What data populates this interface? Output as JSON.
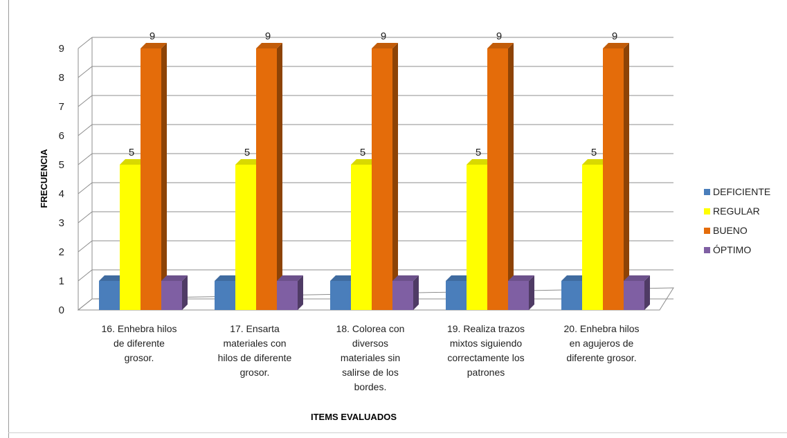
{
  "chart_data": {
    "type": "bar",
    "style": "3d-clustered",
    "title": "",
    "xlabel": "ITEMS EVALUADOS",
    "ylabel": "FRECUENCIA",
    "ylim": [
      0,
      9
    ],
    "yticks": [
      0,
      1,
      2,
      3,
      4,
      5,
      6,
      7,
      8,
      9
    ],
    "grid": true,
    "legend_position": "right",
    "categories": [
      [
        "16. Enhebra hilos",
        "de diferente",
        "grosor."
      ],
      [
        "17. Ensarta",
        "materiales con",
        "hilos de diferente",
        "grosor."
      ],
      [
        "18. Colorea con",
        "diversos",
        "materiales sin",
        "salirse de los",
        "bordes."
      ],
      [
        "19. Realiza trazos",
        "mixtos siguiendo",
        "correctamente los",
        "patrones"
      ],
      [
        "20. Enhebra hilos",
        "en agujeros de",
        "diferente grosor."
      ]
    ],
    "series": [
      {
        "name": "DEFICIENTE",
        "color": "#4a7ebb",
        "values": [
          1,
          1,
          1,
          1,
          1
        ],
        "show_labels": false
      },
      {
        "name": "REGULAR",
        "color": "#ffff00",
        "values": [
          5,
          5,
          5,
          5,
          5
        ],
        "show_labels": true
      },
      {
        "name": "BUENO",
        "color": "#e46c0a",
        "values": [
          9,
          9,
          9,
          9,
          9
        ],
        "show_labels": true
      },
      {
        "name": "ÓPTIMO",
        "color": "#7f5fa3",
        "values": [
          1,
          1,
          1,
          1,
          1
        ],
        "show_labels": false
      }
    ]
  }
}
